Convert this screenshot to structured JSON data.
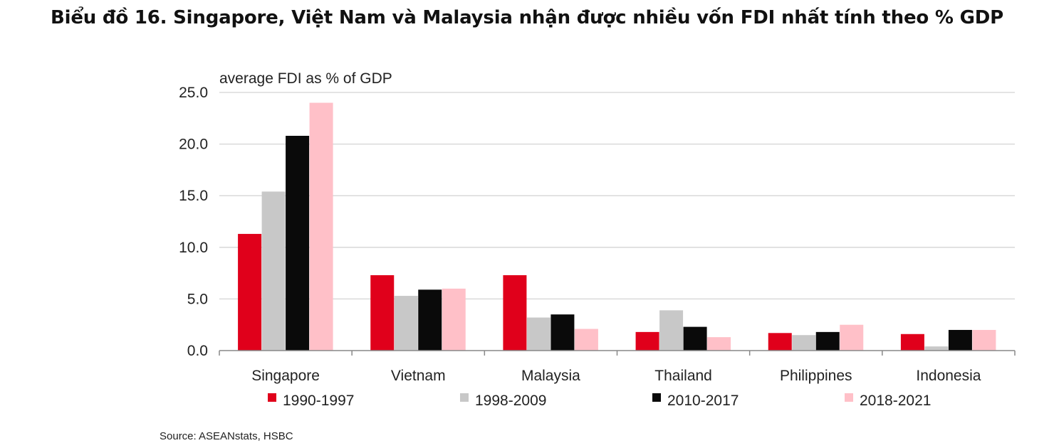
{
  "title": "Biểu đồ 16. Singapore, Việt Nam và Malaysia nhận được nhiều vốn FDI nhất tính theo % GDP",
  "source": "Source: ASEANstats, HSBC",
  "chart_data": {
    "type": "bar",
    "ylabel": "average FDI as % of GDP",
    "xlabel": "",
    "ylim": [
      0,
      25
    ],
    "yticks": [
      "0.0",
      "5.0",
      "10.0",
      "15.0",
      "20.0",
      "25.0"
    ],
    "grid": true,
    "legend_position": "bottom",
    "categories": [
      "Singapore",
      "Vietnam",
      "Malaysia",
      "Thailand",
      "Philippines",
      "Indonesia"
    ],
    "series": [
      {
        "name": "1990-1997",
        "color": "#e0001b",
        "values": [
          11.3,
          7.3,
          7.3,
          1.8,
          1.7,
          1.6
        ]
      },
      {
        "name": "1998-2009",
        "color": "#c8c8c8",
        "values": [
          15.4,
          5.3,
          3.2,
          3.9,
          1.5,
          0.4
        ]
      },
      {
        "name": "2010-2017",
        "color": "#0a0a0a",
        "values": [
          20.8,
          5.9,
          3.5,
          2.3,
          1.8,
          2.0
        ]
      },
      {
        "name": "2018-2021",
        "color": "#ffc0c8",
        "values": [
          24.0,
          6.0,
          2.1,
          1.3,
          2.5,
          2.0
        ]
      }
    ]
  }
}
